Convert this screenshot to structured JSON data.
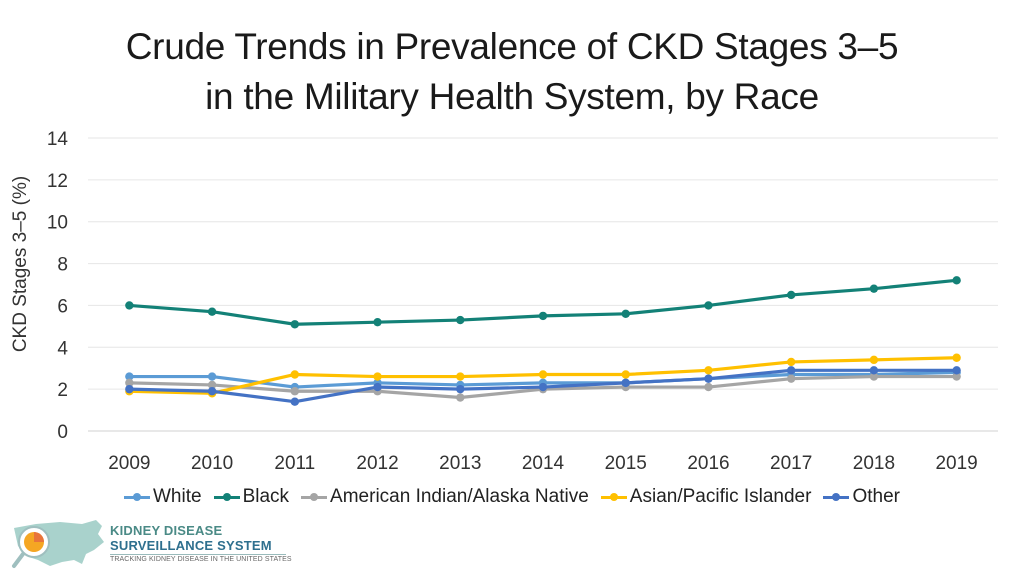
{
  "chart_data": {
    "type": "line",
    "title": [
      "Crude Trends in Prevalence of CKD Stages 3–5",
      "in the Military Health System, by Race"
    ],
    "xlabel": "",
    "ylabel": "CKD Stages 3–5 (%)",
    "ylim": [
      0,
      14
    ],
    "yticks": [
      0,
      2,
      4,
      6,
      8,
      10,
      12,
      14
    ],
    "grid": true,
    "legend_position": "bottom",
    "x": [
      "2009",
      "2010",
      "2011",
      "2012",
      "2013",
      "2014",
      "2015",
      "2016",
      "2017",
      "2018",
      "2019"
    ],
    "series": [
      {
        "name": "White",
        "color": "#5b9bd5",
        "values": [
          2.6,
          2.6,
          2.1,
          2.3,
          2.2,
          2.3,
          2.3,
          2.5,
          2.7,
          2.7,
          2.8
        ]
      },
      {
        "name": "Black",
        "color": "#138177",
        "values": [
          6.0,
          5.7,
          5.1,
          5.2,
          5.3,
          5.5,
          5.6,
          6.0,
          6.5,
          6.8,
          7.2
        ]
      },
      {
        "name": "American Indian/Alaska Native",
        "color": "#a5a5a5",
        "values": [
          2.3,
          2.2,
          1.9,
          1.9,
          1.6,
          2.0,
          2.1,
          2.1,
          2.5,
          2.6,
          2.6
        ]
      },
      {
        "name": "Asian/Pacific Islander",
        "color": "#ffc000",
        "values": [
          1.9,
          1.8,
          2.7,
          2.6,
          2.6,
          2.7,
          2.7,
          2.9,
          3.3,
          3.4,
          3.5
        ]
      },
      {
        "name": "Other",
        "color": "#4472c4",
        "values": [
          2.0,
          1.9,
          1.4,
          2.1,
          2.0,
          2.1,
          2.3,
          2.5,
          2.9,
          2.9,
          2.9
        ]
      }
    ]
  },
  "logo": {
    "line1": "KIDNEY DISEASE",
    "line2": "SURVEILLANCE SYSTEM",
    "line3": "TRACKING KIDNEY DISEASE IN THE UNITED STATES"
  }
}
